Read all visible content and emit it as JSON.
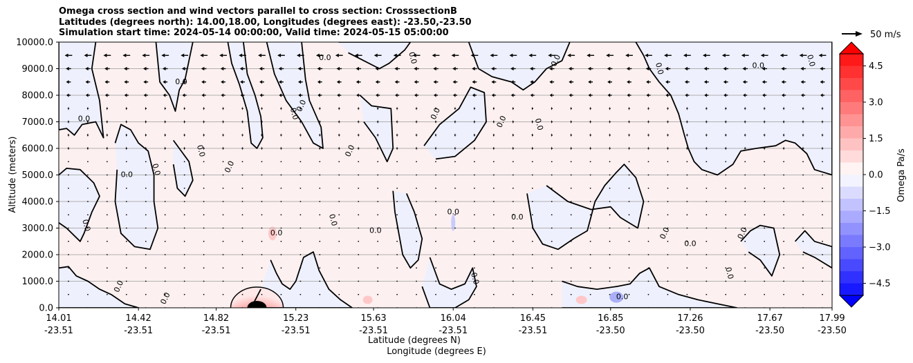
{
  "chart_data": {
    "type": "contour",
    "title_lines": [
      "Omega cross section and wind vectors parallel to cross section: CrosssectionB",
      "Latitudes (degrees north): 14.00,18.00, Longitudes (degrees east): -23.50,-23.50",
      "Simulation start time: 2024-05-14 00:00:00, Valid time: 2024-05-15 05:00:00"
    ],
    "xlabel_lines": [
      "Latitude (degrees N)",
      "Longitude (degrees E)"
    ],
    "ylabel": "Altitude (meters)",
    "xlim": [
      14.01,
      17.99
    ],
    "ylim": [
      0,
      10000
    ],
    "x_ticks": [
      {
        "lat": "14.01",
        "lon": "-23.51",
        "value": 14.01
      },
      {
        "lat": "14.42",
        "lon": "-23.51",
        "value": 14.42
      },
      {
        "lat": "14.82",
        "lon": "-23.51",
        "value": 14.82
      },
      {
        "lat": "15.23",
        "lon": "-23.51",
        "value": 15.23
      },
      {
        "lat": "15.63",
        "lon": "-23.51",
        "value": 15.63
      },
      {
        "lat": "16.04",
        "lon": "-23.51",
        "value": 16.04
      },
      {
        "lat": "16.45",
        "lon": "-23.51",
        "value": 16.45
      },
      {
        "lat": "16.85",
        "lon": "-23.50",
        "value": 16.85
      },
      {
        "lat": "17.26",
        "lon": "-23.50",
        "value": 17.26
      },
      {
        "lat": "17.67",
        "lon": "-23.50",
        "value": 17.67
      },
      {
        "lat": "17.99",
        "lon": "-23.50",
        "value": 17.99
      }
    ],
    "y_ticks": [
      {
        "label": "0.0",
        "value": 0
      },
      {
        "label": "1000.0",
        "value": 1000
      },
      {
        "label": "2000.0",
        "value": 2000
      },
      {
        "label": "3000.0",
        "value": 3000
      },
      {
        "label": "4000.0",
        "value": 4000
      },
      {
        "label": "5000.0",
        "value": 5000
      },
      {
        "label": "6000.0",
        "value": 6000
      },
      {
        "label": "7000.0",
        "value": 7000
      },
      {
        "label": "8000.0",
        "value": 8000
      },
      {
        "label": "9000.0",
        "value": 9000
      },
      {
        "label": "10000.0",
        "value": 10000
      }
    ],
    "grid": true,
    "contour_level_label": "0.0",
    "contour_label_points": [
      {
        "lat": 14.14,
        "alt": 7100
      },
      {
        "lat": 14.15,
        "alt": 3100
      },
      {
        "lat": 14.32,
        "alt": 800
      },
      {
        "lat": 14.36,
        "alt": 5000
      },
      {
        "lat": 14.51,
        "alt": 5200
      },
      {
        "lat": 14.56,
        "alt": 350
      },
      {
        "lat": 14.64,
        "alt": 8500
      },
      {
        "lat": 14.74,
        "alt": 5900
      },
      {
        "lat": 14.89,
        "alt": 5300
      },
      {
        "lat": 15.13,
        "alt": 2800
      },
      {
        "lat": 15.22,
        "alt": 7300
      },
      {
        "lat": 15.26,
        "alt": 7600
      },
      {
        "lat": 15.38,
        "alt": 9400
      },
      {
        "lat": 15.42,
        "alt": 3300
      },
      {
        "lat": 15.51,
        "alt": 5900
      },
      {
        "lat": 15.64,
        "alt": 2900
      },
      {
        "lat": 15.83,
        "alt": 9400
      },
      {
        "lat": 15.95,
        "alt": 7300
      },
      {
        "lat": 16.04,
        "alt": 3600
      },
      {
        "lat": 16.15,
        "alt": 1100
      },
      {
        "lat": 16.29,
        "alt": 7000
      },
      {
        "lat": 16.37,
        "alt": 3400
      },
      {
        "lat": 16.48,
        "alt": 6900
      },
      {
        "lat": 16.57,
        "alt": 9300
      },
      {
        "lat": 16.91,
        "alt": 400
      },
      {
        "lat": 17.1,
        "alt": 9000
      },
      {
        "lat": 17.13,
        "alt": 2800
      },
      {
        "lat": 17.26,
        "alt": 2400
      },
      {
        "lat": 17.46,
        "alt": 1300
      },
      {
        "lat": 17.53,
        "alt": 2800
      },
      {
        "lat": 17.61,
        "alt": 9100
      },
      {
        "lat": 17.88,
        "alt": 9300
      }
    ],
    "colorbar": {
      "label": "Omega Pa/s",
      "ticks": [
        "4.5",
        "3.0",
        "1.5",
        "0.0",
        "−1.5",
        "−3.0",
        "−4.5"
      ],
      "tick_values": [
        4.5,
        3.0,
        1.5,
        0.0,
        -1.5,
        -3.0,
        -4.5
      ],
      "range": [
        -5.0,
        5.0
      ],
      "extend": "both",
      "positive_color": "#ff0000",
      "negative_color": "#0000ff",
      "near_zero_positive": "#fdf0f0",
      "near_zero_negative": "#eef0fd"
    },
    "quiver_key": {
      "label": "50 m/s",
      "value": 50
    },
    "wind_vectors": {
      "direction": "southward (pointing left)",
      "upper_levels_speed_m_s": [
        10,
        18
      ],
      "lower_levels_speed_m_s": 1
    },
    "features": [
      {
        "kind": "positive omega maximum",
        "lat": 15.03,
        "alt": 200,
        "color": "#ff0000"
      },
      {
        "kind": "weak negative omega",
        "lat": 16.88,
        "alt": 400,
        "color": "#aab0f8"
      }
    ]
  }
}
